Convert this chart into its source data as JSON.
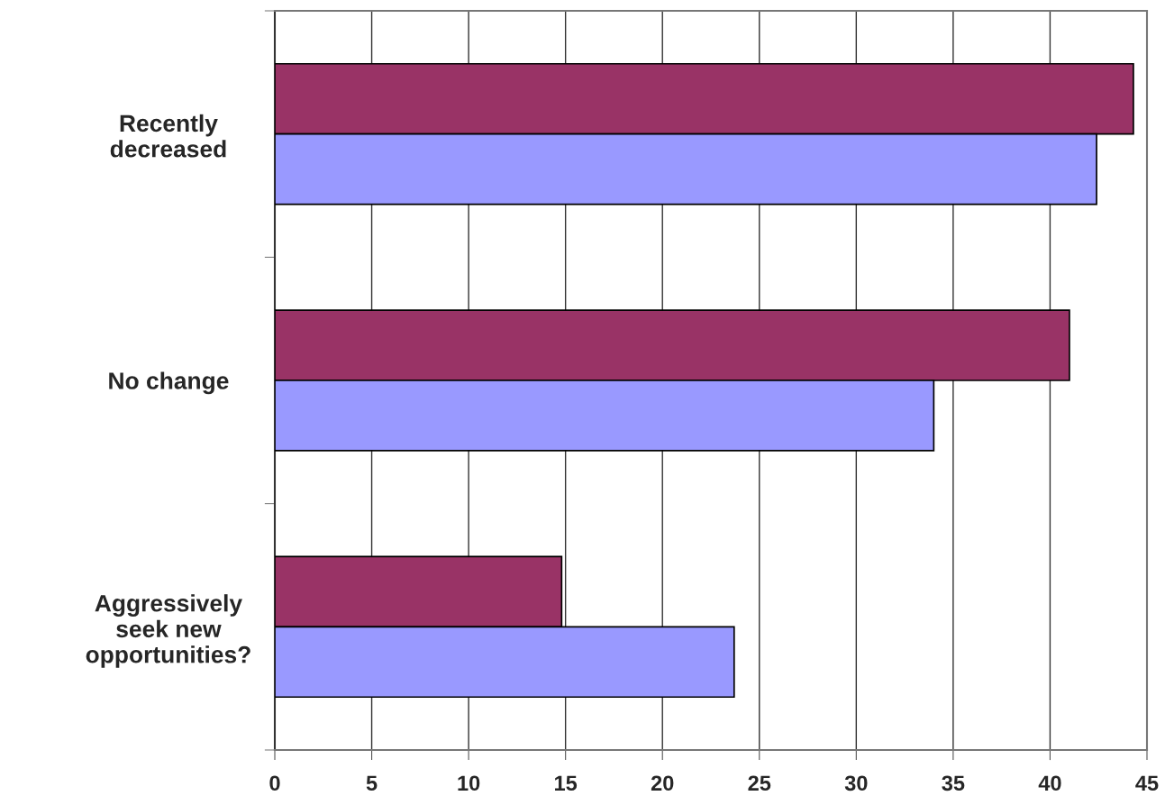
{
  "chart_data": {
    "type": "bar",
    "orientation": "horizontal",
    "categories": [
      "Recently\ndecreased",
      "No change",
      "Aggressively\nseek new\nopportunities?"
    ],
    "series": [
      {
        "color": "#993366",
        "values": [
          44.3,
          41.0,
          14.8
        ]
      },
      {
        "color": "#9999ff",
        "values": [
          42.4,
          34.0,
          23.7
        ]
      }
    ],
    "xlim": [
      0,
      45
    ],
    "xticks": [
      0,
      5,
      10,
      15,
      20,
      25,
      30,
      35,
      40,
      45
    ],
    "grid": "x"
  }
}
